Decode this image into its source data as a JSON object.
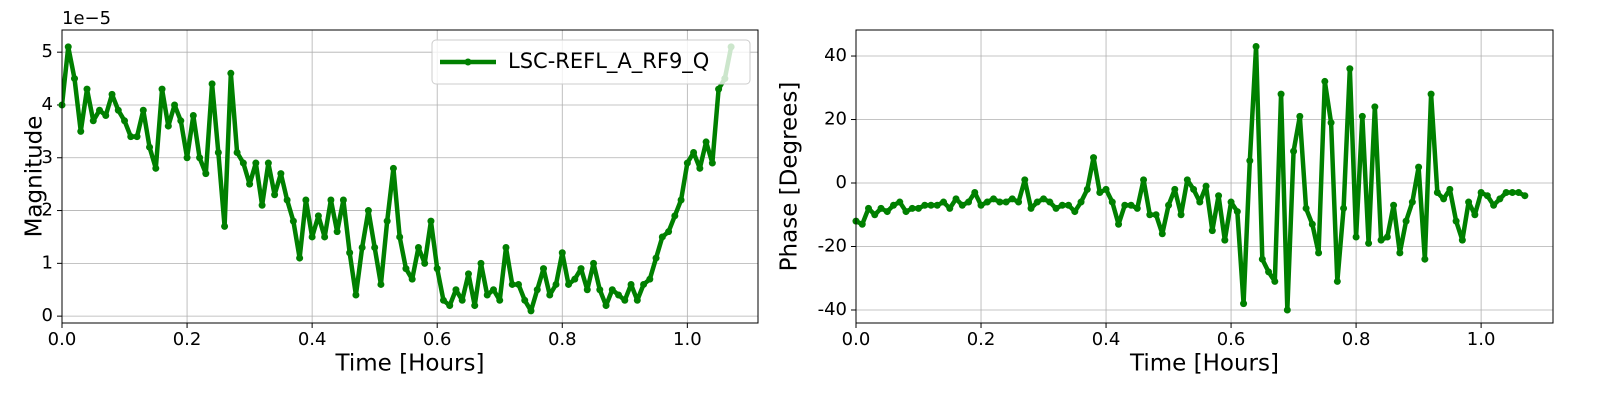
{
  "chart_data": [
    {
      "type": "line",
      "xlabel": "Time [Hours]",
      "ylabel": "Magnitude",
      "y_offset_label": "1e−5",
      "x": [
        0,
        0.01,
        0.02,
        0.03,
        0.04,
        0.05,
        0.06,
        0.07,
        0.08,
        0.09,
        0.1,
        0.11,
        0.12,
        0.13,
        0.14,
        0.15,
        0.16,
        0.17,
        0.18,
        0.19,
        0.2,
        0.21,
        0.22,
        0.23,
        0.24,
        0.25,
        0.26,
        0.27,
        0.28,
        0.29,
        0.3,
        0.31,
        0.32,
        0.33,
        0.34,
        0.35,
        0.36,
        0.37,
        0.38,
        0.39,
        0.4,
        0.41,
        0.42,
        0.43,
        0.44,
        0.45,
        0.46,
        0.47,
        0.48,
        0.49,
        0.5,
        0.51,
        0.52,
        0.53,
        0.54,
        0.55,
        0.56,
        0.57,
        0.58,
        0.59,
        0.6,
        0.61,
        0.62,
        0.63,
        0.64,
        0.65,
        0.66,
        0.67,
        0.68,
        0.69,
        0.7,
        0.71,
        0.72,
        0.73,
        0.74,
        0.75,
        0.76,
        0.77,
        0.78,
        0.79,
        0.8,
        0.81,
        0.82,
        0.83,
        0.84,
        0.85,
        0.86,
        0.87,
        0.88,
        0.89,
        0.9,
        0.91,
        0.92,
        0.93,
        0.94,
        0.95,
        0.96,
        0.97,
        0.98,
        0.99,
        1.0,
        1.01,
        1.02,
        1.03,
        1.04,
        1.05,
        1.06,
        1.07
      ],
      "series": [
        {
          "name": "LSC-REFL_A_RF9_Q",
          "color": "#008000",
          "values": [
            4.0,
            5.1,
            4.5,
            3.5,
            4.3,
            3.7,
            3.9,
            3.8,
            4.2,
            3.9,
            3.7,
            3.4,
            3.4,
            3.9,
            3.2,
            2.8,
            4.3,
            3.6,
            4.0,
            3.7,
            3.0,
            3.8,
            3.0,
            2.7,
            4.4,
            3.1,
            1.7,
            4.6,
            3.1,
            2.9,
            2.5,
            2.9,
            2.1,
            2.9,
            2.3,
            2.7,
            2.2,
            1.8,
            1.1,
            2.2,
            1.5,
            1.9,
            1.5,
            2.2,
            1.6,
            2.2,
            1.2,
            0.4,
            1.3,
            2.0,
            1.3,
            0.6,
            1.8,
            2.8,
            1.5,
            0.9,
            0.7,
            1.3,
            1.0,
            1.8,
            0.9,
            0.3,
            0.2,
            0.5,
            0.3,
            0.8,
            0.2,
            1.0,
            0.4,
            0.5,
            0.3,
            1.3,
            0.6,
            0.6,
            0.3,
            0.1,
            0.5,
            0.9,
            0.4,
            0.6,
            1.2,
            0.6,
            0.7,
            0.9,
            0.5,
            1.0,
            0.5,
            0.2,
            0.5,
            0.4,
            0.3,
            0.6,
            0.3,
            0.6,
            0.7,
            1.1,
            1.5,
            1.6,
            1.9,
            2.2,
            2.9,
            3.1,
            2.8,
            3.3,
            2.9,
            4.3,
            4.5,
            5.1
          ]
        }
      ],
      "xlim": [
        0,
        1.113
      ],
      "ylim": [
        -0.13,
        5.42
      ],
      "xticks": [
        {
          "value": 0,
          "label": "0.0"
        },
        0.2,
        0.4,
        0.6,
        0.8,
        {
          "value": 1,
          "label": "1.0"
        }
      ],
      "yticks": [
        0,
        1,
        2,
        3,
        4,
        5
      ],
      "grid": true,
      "legend": "upper right"
    },
    {
      "type": "line",
      "xlabel": "Time [Hours]",
      "ylabel": "Phase [Degrees]",
      "x": [
        0,
        0.01,
        0.02,
        0.03,
        0.04,
        0.05,
        0.06,
        0.07,
        0.08,
        0.09,
        0.1,
        0.11,
        0.12,
        0.13,
        0.14,
        0.15,
        0.16,
        0.17,
        0.18,
        0.19,
        0.2,
        0.21,
        0.22,
        0.23,
        0.24,
        0.25,
        0.26,
        0.27,
        0.28,
        0.29,
        0.3,
        0.31,
        0.32,
        0.33,
        0.34,
        0.35,
        0.36,
        0.37,
        0.38,
        0.39,
        0.4,
        0.41,
        0.42,
        0.43,
        0.44,
        0.45,
        0.46,
        0.47,
        0.48,
        0.49,
        0.5,
        0.51,
        0.52,
        0.53,
        0.54,
        0.55,
        0.56,
        0.57,
        0.58,
        0.59,
        0.6,
        0.61,
        0.62,
        0.63,
        0.64,
        0.65,
        0.66,
        0.67,
        0.68,
        0.69,
        0.7,
        0.71,
        0.72,
        0.73,
        0.74,
        0.75,
        0.76,
        0.77,
        0.78,
        0.79,
        0.8,
        0.81,
        0.82,
        0.83,
        0.84,
        0.85,
        0.86,
        0.87,
        0.88,
        0.89,
        0.9,
        0.91,
        0.92,
        0.93,
        0.94,
        0.95,
        0.96,
        0.97,
        0.98,
        0.99,
        1.0,
        1.01,
        1.02,
        1.03,
        1.04,
        1.05,
        1.06,
        1.07
      ],
      "series": [
        {
          "color": "#008000",
          "values": [
            -12,
            -13,
            -8,
            -10,
            -8,
            -9,
            -7,
            -6,
            -9,
            -8,
            -8,
            -7,
            -7,
            -7,
            -6,
            -8,
            -5,
            -7,
            -6,
            -3,
            -7,
            -6,
            -5,
            -6,
            -6,
            -5,
            -6,
            1,
            -8,
            -6,
            -5,
            -6,
            -8,
            -7,
            -7,
            -9,
            -6,
            -2,
            8,
            -3,
            -2,
            -6,
            -13,
            -7,
            -7,
            -8,
            1,
            -10,
            -10,
            -16,
            -7,
            -2,
            -10,
            1,
            -2,
            -6,
            -1,
            -15,
            -4,
            -18,
            -6,
            -9,
            -38,
            7,
            43,
            -24,
            -28,
            -31,
            28,
            -40,
            10,
            21,
            -8,
            -13,
            -22,
            32,
            19,
            -31,
            -8,
            36,
            -17,
            21,
            -19,
            24,
            -18,
            -17,
            -7,
            -22,
            -12,
            -6,
            5,
            -24,
            28,
            -3,
            -5,
            -2,
            -12,
            -18,
            -6,
            -10,
            -3,
            -4,
            -7,
            -5,
            -3,
            -3,
            -3,
            -4
          ]
        }
      ],
      "xlim": [
        0,
        1.115
      ],
      "ylim": [
        -44.1,
        48.2
      ],
      "xticks": [
        {
          "value": 0,
          "label": "0.0"
        },
        0.2,
        0.4,
        0.6,
        0.8,
        {
          "value": 1,
          "label": "1.0"
        }
      ],
      "yticks": [
        -40,
        -20,
        0,
        20,
        40
      ],
      "grid": true
    }
  ]
}
